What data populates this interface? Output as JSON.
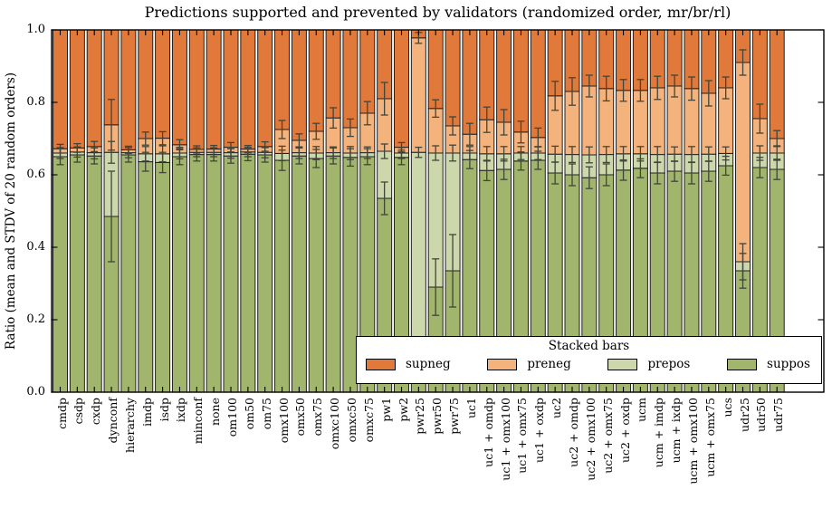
{
  "title": "Predictions supported and prevented by validators (randomized order, mr/br/rl)",
  "ylabel": "Ratio (mean and STDV of 20 random orders)",
  "legend": {
    "title": "Stacked bars",
    "entries": [
      {
        "name": "supneg",
        "label": "supneg",
        "color": "#e1793a"
      },
      {
        "name": "preneg",
        "label": "preneg",
        "color": "#f4b37d"
      },
      {
        "name": "prepos",
        "label": "prepos",
        "color": "#ccd8ab"
      },
      {
        "name": "suppos",
        "label": "suppos",
        "color": "#a2b56c"
      }
    ]
  },
  "colors": {
    "bar_edge": "#1f1f1f",
    "error_bar": "#41453a",
    "axis": "#000000",
    "background": "#ffffff"
  },
  "chart_data": {
    "type": "bar",
    "stacked": true,
    "title": "Predictions supported and prevented by validators (randomized order, mr/br/rl)",
    "xlabel": "",
    "ylabel": "Ratio (mean and STDV of 20 random orders)",
    "ylim": [
      0.0,
      1.0
    ],
    "yticks": [
      0.0,
      0.2,
      0.4,
      0.6,
      0.8,
      1.0
    ],
    "grid": false,
    "legend_position": "lower right",
    "series_order_bottom_to_top": [
      "suppos",
      "prepos",
      "preneg",
      "supneg"
    ],
    "bounds_desc": "bounds = cumulative tops [suppos_top, prepos_top, preneg_top]; supneg fills up to 1.0; err = symmetric half-lengths of error bars at each of the three boundaries",
    "bars": [
      {
        "label": "cmdp",
        "bounds": [
          0.65,
          0.66,
          0.672
        ],
        "err": [
          0.022,
          0.015,
          0.012
        ]
      },
      {
        "label": "csdp",
        "bounds": [
          0.655,
          0.663,
          0.674
        ],
        "err": [
          0.02,
          0.014,
          0.012
        ]
      },
      {
        "label": "cxdp",
        "bounds": [
          0.652,
          0.661,
          0.678
        ],
        "err": [
          0.022,
          0.017,
          0.014
        ]
      },
      {
        "label": "dynconf",
        "bounds": [
          0.485,
          0.662,
          0.738
        ],
        "err": [
          0.125,
          0.03,
          0.07
        ]
      },
      {
        "label": "hierarchy",
        "bounds": [
          0.655,
          0.661,
          0.669
        ],
        "err": [
          0.02,
          0.014,
          0.01
        ]
      },
      {
        "label": "imdp",
        "bounds": [
          0.636,
          0.658,
          0.7
        ],
        "err": [
          0.026,
          0.02,
          0.018
        ]
      },
      {
        "label": "isdp",
        "bounds": [
          0.634,
          0.658,
          0.701
        ],
        "err": [
          0.028,
          0.022,
          0.018
        ]
      },
      {
        "label": "ixdp",
        "bounds": [
          0.65,
          0.66,
          0.683
        ],
        "err": [
          0.022,
          0.016,
          0.014
        ]
      },
      {
        "label": "minconf",
        "bounds": [
          0.656,
          0.662,
          0.67
        ],
        "err": [
          0.018,
          0.012,
          0.01
        ]
      },
      {
        "label": "none",
        "bounds": [
          0.656,
          0.662,
          0.671
        ],
        "err": [
          0.018,
          0.012,
          0.01
        ]
      },
      {
        "label": "om100",
        "bounds": [
          0.652,
          0.661,
          0.676
        ],
        "err": [
          0.02,
          0.015,
          0.013
        ]
      },
      {
        "label": "om50",
        "bounds": [
          0.657,
          0.663,
          0.671
        ],
        "err": [
          0.018,
          0.013,
          0.01
        ]
      },
      {
        "label": "om75",
        "bounds": [
          0.655,
          0.662,
          0.678
        ],
        "err": [
          0.02,
          0.015,
          0.013
        ]
      },
      {
        "label": "omx100",
        "bounds": [
          0.64,
          0.659,
          0.725
        ],
        "err": [
          0.028,
          0.02,
          0.025
        ]
      },
      {
        "label": "omx50",
        "bounds": [
          0.652,
          0.661,
          0.695
        ],
        "err": [
          0.022,
          0.016,
          0.018
        ]
      },
      {
        "label": "omx75",
        "bounds": [
          0.645,
          0.66,
          0.72
        ],
        "err": [
          0.025,
          0.018,
          0.022
        ]
      },
      {
        "label": "omxc100",
        "bounds": [
          0.652,
          0.661,
          0.757
        ],
        "err": [
          0.022,
          0.016,
          0.028
        ]
      },
      {
        "label": "omxc50",
        "bounds": [
          0.648,
          0.66,
          0.73
        ],
        "err": [
          0.024,
          0.018,
          0.024
        ]
      },
      {
        "label": "omxc75",
        "bounds": [
          0.65,
          0.661,
          0.77
        ],
        "err": [
          0.022,
          0.016,
          0.032
        ]
      },
      {
        "label": "pw1",
        "bounds": [
          0.535,
          0.665,
          0.81
        ],
        "err": [
          0.045,
          0.02,
          0.045
        ]
      },
      {
        "label": "pw2",
        "bounds": [
          0.648,
          0.66,
          0.676
        ],
        "err": [
          0.02,
          0.015,
          0.013
        ]
      },
      {
        "label": "pwr25",
        "bounds": [
          0.07,
          0.662,
          0.978
        ],
        "err": [
          0.02,
          0.014,
          0.015
        ]
      },
      {
        "label": "pwr50",
        "bounds": [
          0.29,
          0.66,
          0.783
        ],
        "err": [
          0.078,
          0.02,
          0.024
        ]
      },
      {
        "label": "pwr75",
        "bounds": [
          0.335,
          0.66,
          0.735
        ],
        "err": [
          0.1,
          0.022,
          0.025
        ]
      },
      {
        "label": "uc1",
        "bounds": [
          0.642,
          0.66,
          0.712
        ],
        "err": [
          0.025,
          0.018,
          0.03
        ]
      },
      {
        "label": "uc1 + omdp",
        "bounds": [
          0.612,
          0.658,
          0.752
        ],
        "err": [
          0.028,
          0.02,
          0.035
        ]
      },
      {
        "label": "uc1 + omx100",
        "bounds": [
          0.615,
          0.658,
          0.745
        ],
        "err": [
          0.028,
          0.02,
          0.035
        ]
      },
      {
        "label": "uc1 + omx75",
        "bounds": [
          0.638,
          0.66,
          0.718
        ],
        "err": [
          0.025,
          0.018,
          0.03
        ]
      },
      {
        "label": "uc1 + oxdp",
        "bounds": [
          0.64,
          0.66,
          0.703
        ],
        "err": [
          0.025,
          0.018,
          0.026
        ]
      },
      {
        "label": "uc2",
        "bounds": [
          0.605,
          0.657,
          0.818
        ],
        "err": [
          0.03,
          0.022,
          0.04
        ]
      },
      {
        "label": "uc2 + omdp",
        "bounds": [
          0.6,
          0.656,
          0.83
        ],
        "err": [
          0.03,
          0.022,
          0.038
        ]
      },
      {
        "label": "uc2 + omx100",
        "bounds": [
          0.592,
          0.655,
          0.845
        ],
        "err": [
          0.03,
          0.022,
          0.03
        ]
      },
      {
        "label": "uc2 + omx75",
        "bounds": [
          0.6,
          0.656,
          0.838
        ],
        "err": [
          0.03,
          0.022,
          0.034
        ]
      },
      {
        "label": "uc2 + oxdp",
        "bounds": [
          0.613,
          0.658,
          0.833
        ],
        "err": [
          0.028,
          0.02,
          0.03
        ]
      },
      {
        "label": "ucm",
        "bounds": [
          0.618,
          0.658,
          0.833
        ],
        "err": [
          0.026,
          0.02,
          0.03
        ]
      },
      {
        "label": "ucm + imdp",
        "bounds": [
          0.605,
          0.656,
          0.84
        ],
        "err": [
          0.03,
          0.022,
          0.032
        ]
      },
      {
        "label": "ucm + ixdp",
        "bounds": [
          0.61,
          0.657,
          0.845
        ],
        "err": [
          0.028,
          0.02,
          0.03
        ]
      },
      {
        "label": "ucm + omx100",
        "bounds": [
          0.605,
          0.656,
          0.838
        ],
        "err": [
          0.03,
          0.022,
          0.032
        ]
      },
      {
        "label": "ucm + omx75",
        "bounds": [
          0.61,
          0.657,
          0.825
        ],
        "err": [
          0.028,
          0.02,
          0.035
        ]
      },
      {
        "label": "ucs",
        "bounds": [
          0.625,
          0.659,
          0.84
        ],
        "err": [
          0.026,
          0.018,
          0.03
        ]
      },
      {
        "label": "udr25",
        "bounds": [
          0.335,
          0.36,
          0.91
        ],
        "err": [
          0.048,
          0.05,
          0.035
        ]
      },
      {
        "label": "udr50",
        "bounds": [
          0.62,
          0.66,
          0.755
        ],
        "err": [
          0.028,
          0.02,
          0.04
        ]
      },
      {
        "label": "udr75",
        "bounds": [
          0.615,
          0.66,
          0.7
        ],
        "err": [
          0.028,
          0.02,
          0.022
        ]
      }
    ]
  }
}
